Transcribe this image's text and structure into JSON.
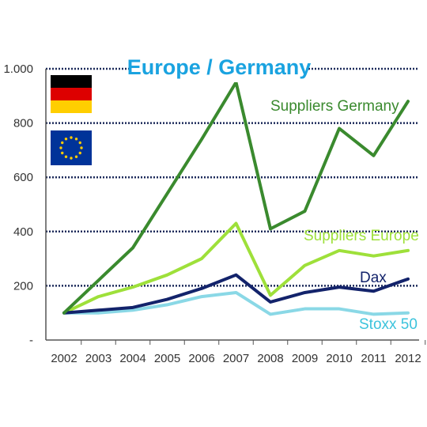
{
  "chart_data": {
    "type": "line",
    "title": "Europe / Germany",
    "x": [
      "2002",
      "2003",
      "2004",
      "2005",
      "2006",
      "2007",
      "2008",
      "2009",
      "2010",
      "2011",
      "2012"
    ],
    "ylim": [
      0,
      1000
    ],
    "yticks": [
      0,
      200,
      400,
      600,
      800,
      1000
    ],
    "ytick_labels": [
      "-",
      "200",
      "400",
      "600",
      "800",
      "1.000"
    ],
    "grid": "horizontal dotted",
    "series": [
      {
        "name": "Suppliers Germany",
        "color": "#3a8a2e",
        "values": [
          100,
          220,
          340,
          540,
          740,
          950,
          410,
          475,
          780,
          680,
          880
        ]
      },
      {
        "name": "Suppliers Europe",
        "color": "#9ee03a",
        "values": [
          100,
          160,
          195,
          240,
          300,
          430,
          165,
          275,
          330,
          310,
          330
        ]
      },
      {
        "name": "Dax",
        "color": "#13236b",
        "values": [
          100,
          110,
          120,
          150,
          190,
          240,
          140,
          175,
          195,
          180,
          225
        ]
      },
      {
        "name": "Stoxx 50",
        "color": "#8ad8e6",
        "values": [
          100,
          100,
          110,
          130,
          160,
          175,
          95,
          115,
          115,
          95,
          100
        ]
      }
    ]
  },
  "legend_icons": [
    "flag-germany-icon",
    "flag-eu-icon"
  ]
}
